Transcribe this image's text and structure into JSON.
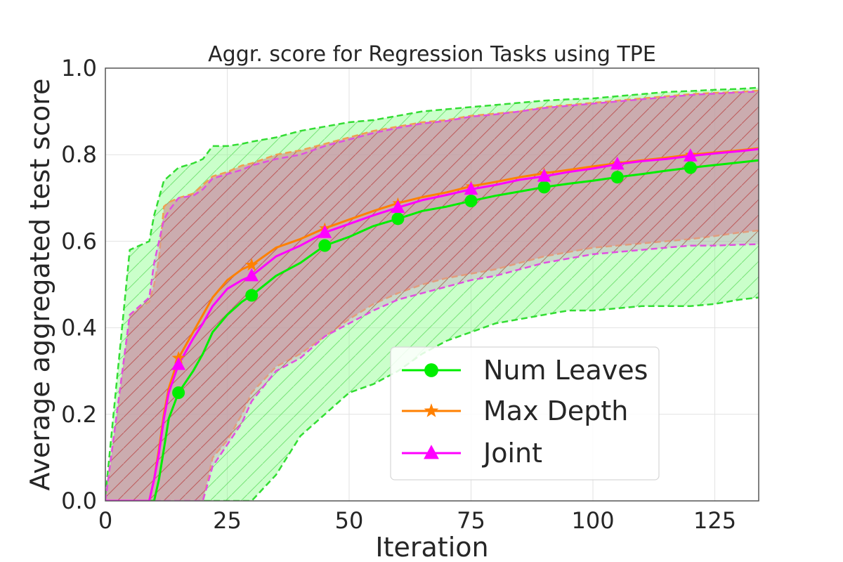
{
  "chart_data": {
    "type": "line",
    "title": "Aggr. score for Regression Tasks using TPE",
    "xlabel": "Iteration",
    "ylabel": "Average aggregated test score",
    "xlim": [
      0,
      134
    ],
    "ylim": [
      0,
      1.0
    ],
    "xticks": [
      0,
      25,
      50,
      75,
      100,
      125
    ],
    "yticks": [
      0.0,
      0.2,
      0.4,
      0.6,
      0.8,
      1.0
    ],
    "xtick_labels": [
      "0",
      "25",
      "50",
      "75",
      "100",
      "125"
    ],
    "ytick_labels": [
      "0.0",
      "0.2",
      "0.4",
      "0.6",
      "0.8",
      "1.0"
    ],
    "grid": true,
    "legend_position": "bottom-right",
    "x": [
      0,
      5,
      9,
      10,
      11,
      12,
      13,
      15,
      18,
      20,
      22,
      25,
      28,
      30,
      35,
      40,
      45,
      50,
      55,
      60,
      65,
      70,
      75,
      80,
      85,
      90,
      95,
      100,
      105,
      110,
      115,
      120,
      125,
      130,
      134
    ],
    "series": [
      {
        "name": "Num Leaves",
        "color": "#00ee00",
        "marker": "circle",
        "mean": [
          0,
          0,
          0,
          0,
          0.05,
          0.12,
          0.19,
          0.25,
          0.3,
          0.34,
          0.39,
          0.43,
          0.46,
          0.475,
          0.52,
          0.55,
          0.59,
          0.61,
          0.635,
          0.652,
          0.67,
          0.68,
          0.693,
          0.705,
          0.715,
          0.725,
          0.733,
          0.74,
          0.748,
          0.755,
          0.763,
          0.77,
          0.776,
          0.782,
          0.787
        ],
        "upper": [
          0.01,
          0.58,
          0.6,
          0.66,
          0.7,
          0.74,
          0.75,
          0.77,
          0.78,
          0.79,
          0.82,
          0.82,
          0.825,
          0.83,
          0.84,
          0.855,
          0.865,
          0.875,
          0.88,
          0.89,
          0.9,
          0.905,
          0.91,
          0.915,
          0.92,
          0.925,
          0.928,
          0.93,
          0.935,
          0.94,
          0.945,
          0.947,
          0.95,
          0.952,
          0.955
        ],
        "lower": [
          0,
          0,
          0,
          0,
          0,
          0,
          0,
          0,
          0,
          0,
          0,
          0,
          0,
          0,
          0.06,
          0.15,
          0.2,
          0.25,
          0.27,
          0.3,
          0.34,
          0.37,
          0.39,
          0.41,
          0.42,
          0.43,
          0.44,
          0.44,
          0.445,
          0.45,
          0.45,
          0.45,
          0.455,
          0.465,
          0.47
        ]
      },
      {
        "name": "Max Depth",
        "color": "#ff8000",
        "marker": "star",
        "mean": [
          0,
          0,
          0,
          0.05,
          0.12,
          0.2,
          0.26,
          0.33,
          0.39,
          0.43,
          0.47,
          0.51,
          0.535,
          0.545,
          0.585,
          0.605,
          0.63,
          0.65,
          0.67,
          0.688,
          0.702,
          0.713,
          0.727,
          0.737,
          0.748,
          0.757,
          0.765,
          0.773,
          0.78,
          0.787,
          0.793,
          0.8,
          0.805,
          0.81,
          0.815
        ],
        "upper": [
          0,
          0.43,
          0.46,
          0.5,
          0.56,
          0.68,
          0.69,
          0.7,
          0.71,
          0.73,
          0.75,
          0.76,
          0.775,
          0.78,
          0.8,
          0.81,
          0.825,
          0.84,
          0.855,
          0.865,
          0.875,
          0.88,
          0.89,
          0.895,
          0.9,
          0.91,
          0.915,
          0.92,
          0.925,
          0.93,
          0.935,
          0.94,
          0.943,
          0.945,
          0.948
        ],
        "lower": [
          0,
          0,
          0,
          0,
          0,
          0,
          0,
          0,
          0,
          0,
          0.1,
          0.14,
          0.2,
          0.25,
          0.31,
          0.34,
          0.38,
          0.42,
          0.455,
          0.48,
          0.5,
          0.515,
          0.525,
          0.535,
          0.55,
          0.565,
          0.575,
          0.585,
          0.59,
          0.595,
          0.6,
          0.605,
          0.612,
          0.62,
          0.625
        ]
      },
      {
        "name": "Joint",
        "color": "#ff00ff",
        "marker": "triangle",
        "mean": [
          0,
          0,
          0,
          0.05,
          0.11,
          0.19,
          0.25,
          0.315,
          0.375,
          0.41,
          0.45,
          0.49,
          0.51,
          0.52,
          0.565,
          0.59,
          0.62,
          0.64,
          0.66,
          0.678,
          0.695,
          0.707,
          0.72,
          0.73,
          0.742,
          0.75,
          0.76,
          0.768,
          0.778,
          0.785,
          0.79,
          0.797,
          0.803,
          0.808,
          0.813
        ],
        "upper": [
          0,
          0.43,
          0.47,
          0.55,
          0.6,
          0.65,
          0.67,
          0.7,
          0.705,
          0.72,
          0.745,
          0.755,
          0.765,
          0.775,
          0.79,
          0.8,
          0.82,
          0.835,
          0.85,
          0.862,
          0.872,
          0.878,
          0.888,
          0.893,
          0.9,
          0.908,
          0.913,
          0.918,
          0.923,
          0.928,
          0.933,
          0.938,
          0.941,
          0.944,
          0.946
        ],
        "lower": [
          0,
          0,
          0,
          0,
          0,
          0,
          0,
          0,
          0,
          0,
          0.08,
          0.13,
          0.18,
          0.23,
          0.3,
          0.33,
          0.38,
          0.41,
          0.44,
          0.465,
          0.48,
          0.495,
          0.51,
          0.52,
          0.535,
          0.55,
          0.56,
          0.57,
          0.575,
          0.58,
          0.585,
          0.59,
          0.59,
          0.592,
          0.593
        ]
      }
    ],
    "markers_at_x": [
      15,
      30,
      45,
      60,
      75,
      90,
      105,
      120
    ]
  }
}
